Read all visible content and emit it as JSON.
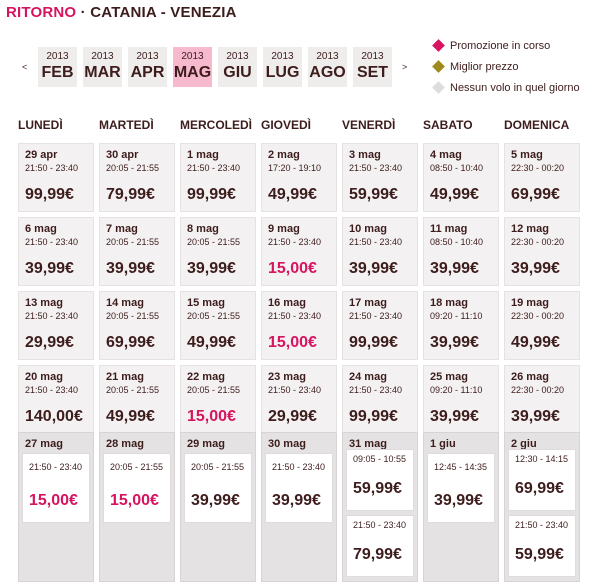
{
  "header": {
    "title": "RITORNO",
    "separator": "·",
    "route": "CATANIA - VENEZIA"
  },
  "nav": {
    "prev": "<",
    "next": ">"
  },
  "months": [
    {
      "year": "2013",
      "month": "FEB"
    },
    {
      "year": "2013",
      "month": "MAR"
    },
    {
      "year": "2013",
      "month": "APR"
    },
    {
      "year": "2013",
      "month": "MAG",
      "selected": true
    },
    {
      "year": "2013",
      "month": "GIU"
    },
    {
      "year": "2013",
      "month": "LUG"
    },
    {
      "year": "2013",
      "month": "AGO"
    },
    {
      "year": "2013",
      "month": "SET"
    }
  ],
  "legend": [
    {
      "label": "Promozione in corso",
      "color": "#d6145f"
    },
    {
      "label": "Miglior prezzo",
      "color": "#a0891c"
    },
    {
      "label": "Nessun volo in quel giorno",
      "color": "#dddddd"
    }
  ],
  "weekdays": [
    "LUNEDÌ",
    "MARTEDÌ",
    "MERCOLEDÌ",
    "GIOVEDÌ",
    "VENERDÌ",
    "SABATO",
    "DOMENICA"
  ],
  "weeks": [
    [
      {
        "date": "29 apr",
        "flights": [
          {
            "time": "21:50 - 23:40",
            "price": "99,99€"
          }
        ]
      },
      {
        "date": "30 apr",
        "flights": [
          {
            "time": "20:05 - 21:55",
            "price": "79,99€"
          }
        ]
      },
      {
        "date": "1 mag",
        "flights": [
          {
            "time": "21:50 - 23:40",
            "price": "99,99€"
          }
        ]
      },
      {
        "date": "2 mag",
        "flights": [
          {
            "time": "17:20 - 19:10",
            "price": "49,99€"
          }
        ]
      },
      {
        "date": "3 mag",
        "flights": [
          {
            "time": "21:50 - 23:40",
            "price": "59,99€"
          }
        ]
      },
      {
        "date": "4 mag",
        "flights": [
          {
            "time": "08:50 - 10:40",
            "price": "49,99€"
          }
        ]
      },
      {
        "date": "5 mag",
        "flights": [
          {
            "time": "22:30 - 00:20",
            "price": "69,99€"
          }
        ]
      }
    ],
    [
      {
        "date": "6 mag",
        "flights": [
          {
            "time": "21:50 - 23:40",
            "price": "39,99€"
          }
        ]
      },
      {
        "date": "7 mag",
        "flights": [
          {
            "time": "20:05 - 21:55",
            "price": "39,99€"
          }
        ]
      },
      {
        "date": "8 mag",
        "flights": [
          {
            "time": "20:05 - 21:55",
            "price": "39,99€"
          }
        ]
      },
      {
        "date": "9 mag",
        "flights": [
          {
            "time": "21:50 - 23:40",
            "price": "15,00€",
            "promo": true
          }
        ]
      },
      {
        "date": "10 mag",
        "flights": [
          {
            "time": "21:50 - 23:40",
            "price": "39,99€"
          }
        ]
      },
      {
        "date": "11 mag",
        "flights": [
          {
            "time": "08:50 - 10:40",
            "price": "39,99€"
          }
        ]
      },
      {
        "date": "12 mag",
        "flights": [
          {
            "time": "22:30 - 00:20",
            "price": "39,99€"
          }
        ]
      }
    ],
    [
      {
        "date": "13 mag",
        "flights": [
          {
            "time": "21:50 - 23:40",
            "price": "29,99€"
          }
        ]
      },
      {
        "date": "14 mag",
        "flights": [
          {
            "time": "20:05 - 21:55",
            "price": "69,99€"
          }
        ]
      },
      {
        "date": "15 mag",
        "flights": [
          {
            "time": "20:05 - 21:55",
            "price": "49,99€"
          }
        ]
      },
      {
        "date": "16 mag",
        "flights": [
          {
            "time": "21:50 - 23:40",
            "price": "15,00€",
            "promo": true
          }
        ]
      },
      {
        "date": "17 mag",
        "flights": [
          {
            "time": "21:50 - 23:40",
            "price": "99,99€"
          }
        ]
      },
      {
        "date": "18 mag",
        "flights": [
          {
            "time": "09:20 - 11:10",
            "price": "39,99€"
          }
        ]
      },
      {
        "date": "19 mag",
        "flights": [
          {
            "time": "22:30 - 00:20",
            "price": "49,99€"
          }
        ]
      }
    ],
    [
      {
        "date": "20 mag",
        "flights": [
          {
            "time": "21:50 - 23:40",
            "price": "140,00€"
          }
        ]
      },
      {
        "date": "21 mag",
        "flights": [
          {
            "time": "20:05 - 21:55",
            "price": "49,99€"
          }
        ]
      },
      {
        "date": "22 mag",
        "flights": [
          {
            "time": "20:05 - 21:55",
            "price": "15,00€",
            "promo": true
          }
        ]
      },
      {
        "date": "23 mag",
        "flights": [
          {
            "time": "21:50 - 23:40",
            "price": "29,99€"
          }
        ]
      },
      {
        "date": "24 mag",
        "flights": [
          {
            "time": "21:50 - 23:40",
            "price": "99,99€"
          }
        ]
      },
      {
        "date": "25 mag",
        "flights": [
          {
            "time": "09:20 - 11:10",
            "price": "39,99€"
          }
        ]
      },
      {
        "date": "26 mag",
        "flights": [
          {
            "time": "22:30 - 00:20",
            "price": "39,99€"
          }
        ]
      }
    ],
    [
      {
        "date": "27 mag",
        "flights": [
          {
            "time": "21:50 - 23:40",
            "price": "15,00€",
            "promo": true
          }
        ]
      },
      {
        "date": "28 mag",
        "flights": [
          {
            "time": "20:05 - 21:55",
            "price": "15,00€",
            "promo": true
          }
        ]
      },
      {
        "date": "29 mag",
        "flights": [
          {
            "time": "20:05 - 21:55",
            "price": "39,99€"
          }
        ]
      },
      {
        "date": "30 mag",
        "flights": [
          {
            "time": "21:50 - 23:40",
            "price": "39,99€"
          }
        ]
      },
      {
        "date": "31 mag",
        "flights": [
          {
            "time": "09:05 - 10:55",
            "price": "59,99€"
          },
          {
            "time": "21:50 - 23:40",
            "price": "79,99€"
          }
        ]
      },
      {
        "date": "1 giu",
        "flights": [
          {
            "time": "12:45 - 14:35",
            "price": "39,99€"
          }
        ]
      },
      {
        "date": "2 giu",
        "flights": [
          {
            "time": "12:30 - 14:15",
            "price": "69,99€"
          },
          {
            "time": "21:50 - 23:40",
            "price": "59,99€"
          }
        ]
      }
    ]
  ]
}
